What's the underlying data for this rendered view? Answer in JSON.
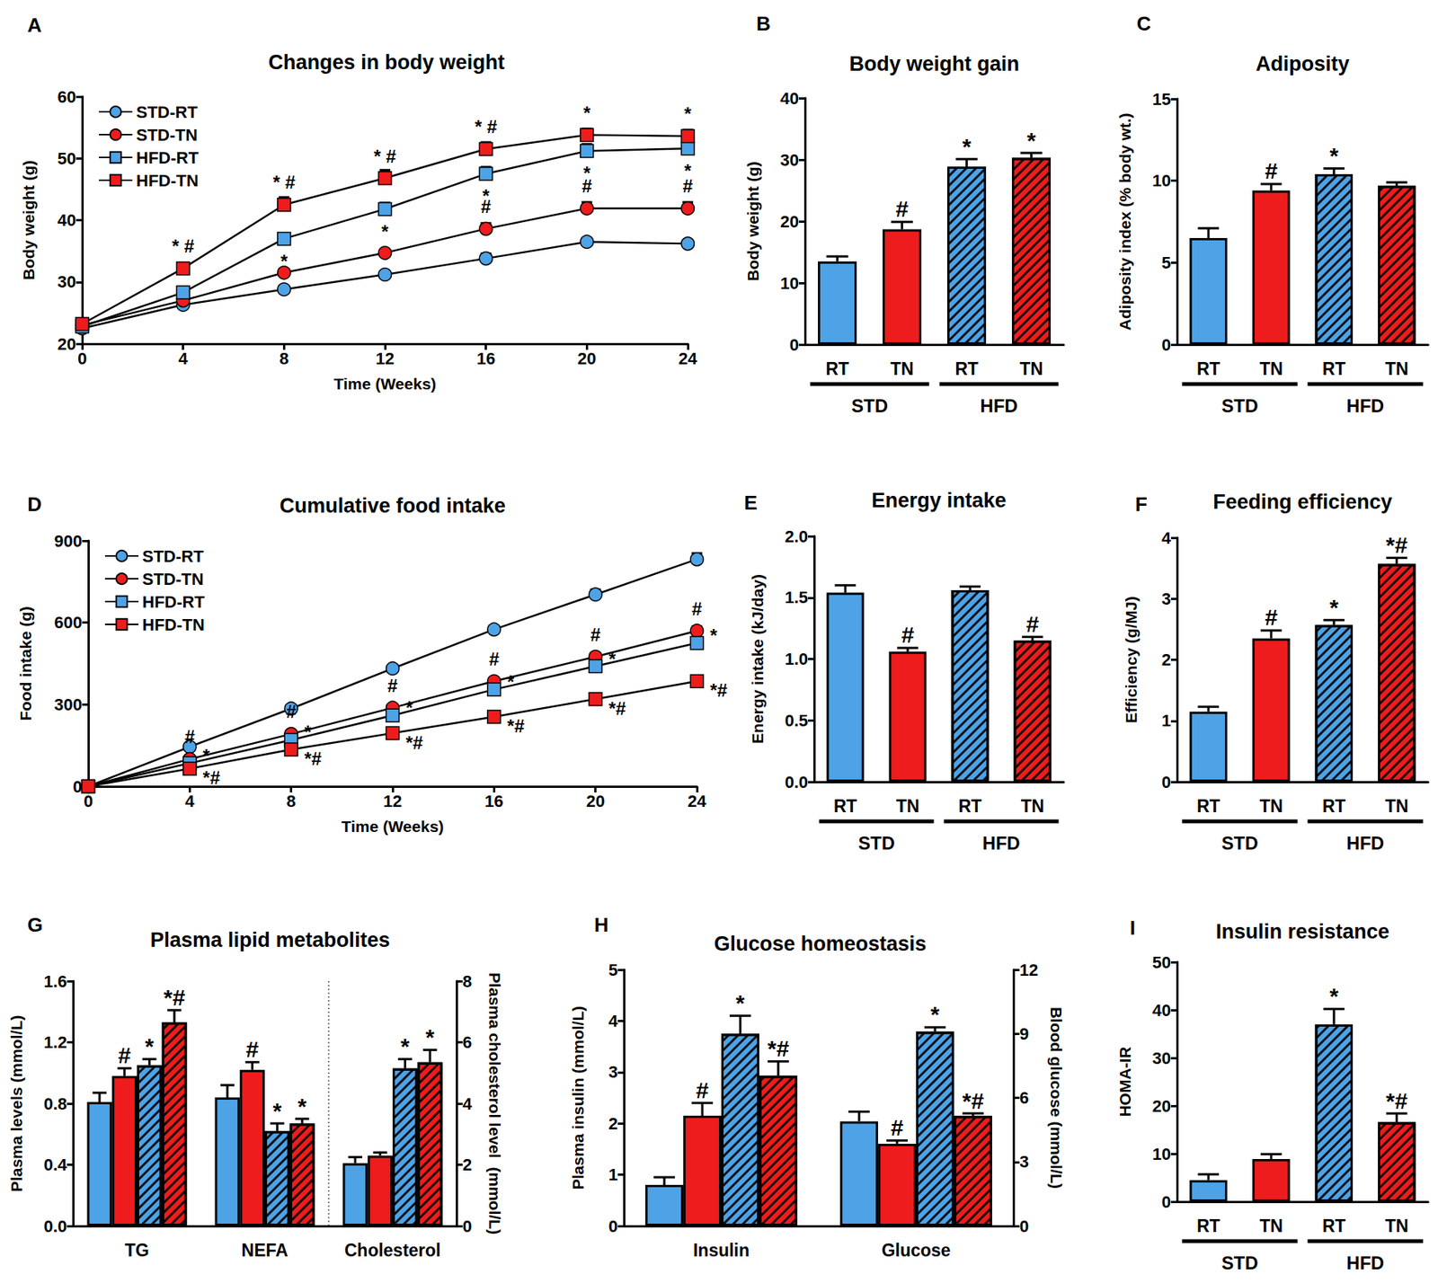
{
  "chart_data": [
    {
      "panel": "A",
      "type": "line",
      "title": "Changes in body weight",
      "x_label": "Time (Weeks)",
      "y_label": "Body weight (g)",
      "x": [
        0,
        4,
        8,
        12,
        16,
        20,
        24
      ],
      "xlim": [
        0,
        24
      ],
      "xticks": [
        0,
        4,
        8,
        12,
        16,
        20,
        24
      ],
      "ylim": [
        20,
        60
      ],
      "yticks": [
        20,
        30,
        40,
        50,
        60
      ],
      "grid": false,
      "legend": "upper left",
      "series": [
        {
          "name": "STD-RT",
          "color": "#4da3e6",
          "marker": "circle",
          "line_style": "solid",
          "values": [
            22.5,
            26.3,
            28.8,
            31.2,
            33.8,
            36.5,
            36.2
          ],
          "errors": [
            0.3,
            0.4,
            0.5,
            0.5,
            0.8,
            0.6,
            0.6
          ],
          "annotations": [
            null,
            null,
            null,
            null,
            null,
            null,
            null
          ]
        },
        {
          "name": "STD-TN",
          "color": "#ee1c1c",
          "marker": "circle",
          "line_style": "solid",
          "values": [
            23.0,
            27.0,
            31.5,
            34.7,
            38.6,
            41.9,
            41.9
          ],
          "errors": [
            0.4,
            0.5,
            0.6,
            0.6,
            0.9,
            1.0,
            1.0
          ],
          "annotations": [
            null,
            null,
            null,
            null,
            "#",
            "#",
            "#"
          ]
        },
        {
          "name": "HFD-RT",
          "color": "#4da3e6",
          "marker": "square",
          "line_style": "solid",
          "values": [
            22.8,
            28.3,
            37.0,
            41.8,
            47.5,
            51.2,
            51.6
          ],
          "errors": [
            0.4,
            0.6,
            0.8,
            1.0,
            1.1,
            1.1,
            1.1
          ],
          "annotations": [
            null,
            null,
            "*",
            "*",
            "*",
            "*",
            "*"
          ]
        },
        {
          "name": "HFD-TN",
          "color": "#ee1c1c",
          "marker": "square",
          "line_style": "solid",
          "values": [
            23.2,
            32.2,
            42.5,
            46.8,
            51.5,
            53.8,
            53.6
          ],
          "errors": [
            0.4,
            0.9,
            1.2,
            1.3,
            1.1,
            1.0,
            1.0
          ],
          "annotations": [
            null,
            "* #",
            "* #",
            "* #",
            "* #",
            "*",
            "*"
          ]
        }
      ]
    },
    {
      "panel": "B",
      "type": "bar",
      "title": "Body weight gain",
      "y_label": "Body weight (g)",
      "categories": [
        "RT",
        "TN",
        "RT",
        "TN"
      ],
      "groups": [
        "STD",
        "HFD"
      ],
      "values": [
        13.5,
        18.7,
        28.9,
        30.3
      ],
      "errors": [
        0.8,
        1.2,
        1.2,
        0.8
      ],
      "annotations": [
        null,
        "#",
        "*",
        "*"
      ],
      "colors": [
        "#4da3e6",
        "#ee1c1c",
        "#4da3e6",
        "#ee1c1c"
      ],
      "ylim": [
        0,
        40
      ],
      "yticks": [
        0,
        10,
        20,
        30,
        40
      ],
      "grid": false
    },
    {
      "panel": "C",
      "type": "bar",
      "title": "Adiposity",
      "y_label": "Adiposity index (% body wt.)",
      "categories": [
        "RT",
        "TN",
        "RT",
        "TN"
      ],
      "groups": [
        "STD",
        "HFD"
      ],
      "values": [
        6.5,
        9.4,
        10.4,
        9.7
      ],
      "errors": [
        0.6,
        0.4,
        0.35,
        0.2
      ],
      "annotations": [
        null,
        "#",
        "*",
        null
      ],
      "colors": [
        "#4da3e6",
        "#ee1c1c",
        "#4da3e6",
        "#ee1c1c"
      ],
      "ylim": [
        0,
        15
      ],
      "yticks": [
        0,
        5,
        10,
        15
      ],
      "grid": false
    },
    {
      "panel": "D",
      "type": "line",
      "title": "Cumulative food intake",
      "x_label": "Time (Weeks)",
      "y_label": "Food intake (g)",
      "x": [
        0,
        4,
        8,
        12,
        16,
        20,
        24
      ],
      "xlim": [
        0,
        24
      ],
      "xticks": [
        0,
        4,
        8,
        12,
        16,
        20,
        24
      ],
      "ylim": [
        0,
        900
      ],
      "yticks": [
        0,
        300,
        600,
        900
      ],
      "grid": false,
      "legend": "upper left",
      "series": [
        {
          "name": "STD-RT",
          "color": "#4da3e6",
          "marker": "circle",
          "line_style": "solid",
          "values": [
            0,
            145,
            285,
            432,
            575,
            703,
            832
          ],
          "errors": [
            0,
            8,
            10,
            12,
            14,
            18,
            22
          ],
          "annotations": [
            null,
            null,
            null,
            null,
            null,
            null,
            null
          ]
        },
        {
          "name": "STD-TN",
          "color": "#ee1c1c",
          "marker": "circle",
          "line_style": "solid",
          "values": [
            0,
            100,
            192,
            288,
            385,
            475,
            570
          ],
          "errors": [
            0,
            5,
            8,
            10,
            12,
            14,
            16
          ],
          "annotations": [
            null,
            "#",
            "#",
            "#",
            "#",
            "#",
            "#"
          ]
        },
        {
          "name": "HFD-RT",
          "color": "#4da3e6",
          "marker": "square",
          "line_style": "solid",
          "values": [
            0,
            85,
            170,
            260,
            355,
            440,
            525
          ],
          "errors": [
            0,
            4,
            6,
            8,
            10,
            12,
            15
          ],
          "annotations": [
            null,
            "*",
            "*",
            "*",
            "*",
            "*",
            "*"
          ]
        },
        {
          "name": "HFD-TN",
          "color": "#ee1c1c",
          "marker": "square",
          "line_style": "solid",
          "values": [
            0,
            65,
            135,
            195,
            255,
            320,
            385
          ],
          "errors": [
            0,
            3,
            5,
            6,
            8,
            10,
            12
          ],
          "annotations": [
            null,
            "*#",
            "*#",
            "*#",
            "*#",
            "*#",
            "*#"
          ]
        }
      ]
    },
    {
      "panel": "E",
      "type": "bar",
      "title": "Energy intake",
      "y_label": "Energy intake (kJ/day)",
      "categories": [
        "RT",
        "TN",
        "RT",
        "TN"
      ],
      "groups": [
        "STD",
        "HFD"
      ],
      "values": [
        1.54,
        1.06,
        1.56,
        1.15
      ],
      "errors": [
        0.06,
        0.03,
        0.03,
        0.03
      ],
      "annotations": [
        null,
        "#",
        null,
        "#"
      ],
      "colors": [
        "#4da3e6",
        "#ee1c1c",
        "#4da3e6",
        "#ee1c1c"
      ],
      "ylim": [
        0,
        2
      ],
      "yticks": [
        {
          "value": 0,
          "label": "0.0"
        },
        0.5,
        {
          "value": 1,
          "label": "1.0"
        },
        1.5,
        {
          "value": 2,
          "label": "2.0"
        }
      ],
      "grid": false
    },
    {
      "panel": "F",
      "type": "bar",
      "title": "Feeding efficiency",
      "y_label": "Efficiency (g/MJ)",
      "categories": [
        "RT",
        "TN",
        "RT",
        "TN"
      ],
      "groups": [
        "STD",
        "HFD"
      ],
      "values": [
        1.15,
        2.35,
        2.57,
        3.57
      ],
      "errors": [
        0.08,
        0.13,
        0.08,
        0.1
      ],
      "annotations": [
        null,
        "#",
        "*",
        "*#"
      ],
      "colors": [
        "#4da3e6",
        "#ee1c1c",
        "#4da3e6",
        "#ee1c1c"
      ],
      "ylim": [
        0,
        4
      ],
      "yticks": [
        0,
        1,
        2,
        3,
        4
      ],
      "grid": false
    },
    {
      "panel": "G",
      "type": "bar",
      "title": "Plasma lipid metabolites",
      "y_label": "Plasma levels (mmol/L)",
      "y2_label": "Plasma cholesterol level  (mmol/L)",
      "categories": [
        "TG",
        "NEFA",
        "Cholesterol"
      ],
      "ylim": [
        0,
        1.6
      ],
      "yticks": [
        {
          "value": 0,
          "label": "0.0"
        },
        0.4,
        0.8,
        1.2,
        1.6
      ],
      "y2lim": [
        0,
        8
      ],
      "y2ticks": [
        0,
        2,
        4,
        6,
        8
      ],
      "grid": false,
      "series": [
        {
          "name": "STD-RT",
          "color": "#4da3e6",
          "values": [
            0.81,
            0.84,
            null
          ],
          "errors": [
            0.06,
            0.08,
            null
          ],
          "annotations": [
            null,
            null,
            null
          ]
        },
        {
          "name": "STD-TN",
          "color": "#ee1c1c",
          "values": [
            0.98,
            1.02,
            null
          ],
          "errors": [
            0.05,
            0.05,
            null
          ],
          "annotations": [
            "#",
            "#",
            null
          ]
        },
        {
          "name": "HFD-RT",
          "color": "#4da3e6",
          "values": [
            1.05,
            0.62,
            null
          ],
          "errors": [
            0.04,
            0.05,
            null
          ],
          "annotations": [
            "*",
            "*",
            null
          ]
        },
        {
          "name": "HFD-TN",
          "color": "#ee1c1c",
          "values": [
            1.33,
            0.67,
            null
          ],
          "errors": [
            0.08,
            0.03,
            null
          ],
          "annotations": [
            "*#",
            "*",
            null
          ]
        },
        {
          "name": "STD-RT",
          "color": "#4da3e6",
          "axis": "y2",
          "values": [
            null,
            null,
            2.05
          ],
          "errors": [
            null,
            null,
            0.2
          ],
          "annotations": [
            null,
            null,
            null
          ]
        },
        {
          "name": "STD-TN",
          "color": "#ee1c1c",
          "axis": "y2",
          "values": [
            null,
            null,
            2.3
          ],
          "errors": [
            null,
            null,
            0.1
          ],
          "annotations": [
            null,
            null,
            null
          ]
        },
        {
          "name": "HFD-RT",
          "color": "#4da3e6",
          "axis": "y2",
          "values": [
            null,
            null,
            5.15
          ],
          "errors": [
            null,
            null,
            0.3
          ],
          "annotations": [
            null,
            null,
            "*"
          ]
        },
        {
          "name": "HFD-TN",
          "color": "#ee1c1c",
          "axis": "y2",
          "values": [
            null,
            null,
            5.35
          ],
          "errors": [
            null,
            null,
            0.4
          ],
          "annotations": [
            null,
            null,
            "*"
          ]
        }
      ]
    },
    {
      "panel": "H",
      "type": "bar",
      "title": "Glucose homeostasis",
      "y_label": "Plasma insulin (mmol/L)",
      "y2_label": "Blood glucose (mmol/L)",
      "categories": [
        "Insulin",
        "Glucose"
      ],
      "ylim": [
        0,
        5
      ],
      "yticks": [
        0,
        1,
        2,
        3,
        4,
        5
      ],
      "y2lim": [
        0,
        12
      ],
      "y2ticks": [
        0,
        3,
        6,
        9,
        12
      ],
      "grid": false,
      "series": [
        {
          "name": "STD-RT",
          "color": "#4da3e6",
          "values": [
            0.8,
            null
          ],
          "errors": [
            0.15,
            null
          ],
          "annotations": [
            null,
            null
          ]
        },
        {
          "name": "STD-TN",
          "color": "#ee1c1c",
          "values": [
            2.15,
            null
          ],
          "errors": [
            0.25,
            null
          ],
          "annotations": [
            "#",
            null
          ]
        },
        {
          "name": "HFD-RT",
          "color": "#4da3e6",
          "values": [
            3.75,
            null
          ],
          "errors": [
            0.35,
            null
          ],
          "annotations": [
            "*",
            null
          ]
        },
        {
          "name": "HFD-TN",
          "color": "#ee1c1c",
          "values": [
            2.93,
            null
          ],
          "errors": [
            0.28,
            null
          ],
          "annotations": [
            "*#",
            null
          ]
        },
        {
          "name": "STD-RT",
          "color": "#4da3e6",
          "axis": "y2",
          "values": [
            null,
            4.9
          ],
          "errors": [
            null,
            0.45
          ],
          "annotations": [
            null,
            null
          ]
        },
        {
          "name": "STD-TN",
          "color": "#ee1c1c",
          "axis": "y2",
          "values": [
            null,
            3.85
          ],
          "errors": [
            null,
            0.15
          ],
          "annotations": [
            null,
            "#"
          ]
        },
        {
          "name": "HFD-RT",
          "color": "#4da3e6",
          "axis": "y2",
          "values": [
            null,
            9.1
          ],
          "errors": [
            null,
            0.2
          ],
          "annotations": [
            null,
            "*"
          ]
        },
        {
          "name": "HFD-TN",
          "color": "#ee1c1c",
          "axis": "y2",
          "values": [
            null,
            5.15
          ],
          "errors": [
            null,
            0.12
          ],
          "annotations": [
            null,
            "*#"
          ]
        }
      ]
    },
    {
      "panel": "I",
      "type": "bar",
      "title": "Insulin resistance",
      "y_label": "HOMA-IR",
      "categories": [
        "RT",
        "TN",
        "RT",
        "TN"
      ],
      "groups": [
        "STD",
        "HFD"
      ],
      "values": [
        4.5,
        8.9,
        37,
        16.6
      ],
      "errors": [
        1.2,
        1.0,
        3.2,
        1.8
      ],
      "annotations": [
        null,
        null,
        "*",
        "*#"
      ],
      "colors": [
        "#4da3e6",
        "#ee1c1c",
        "#4da3e6",
        "#ee1c1c"
      ],
      "ylim": [
        0,
        50
      ],
      "yticks": [
        0,
        10,
        20,
        30,
        40,
        50
      ],
      "grid": false
    }
  ]
}
